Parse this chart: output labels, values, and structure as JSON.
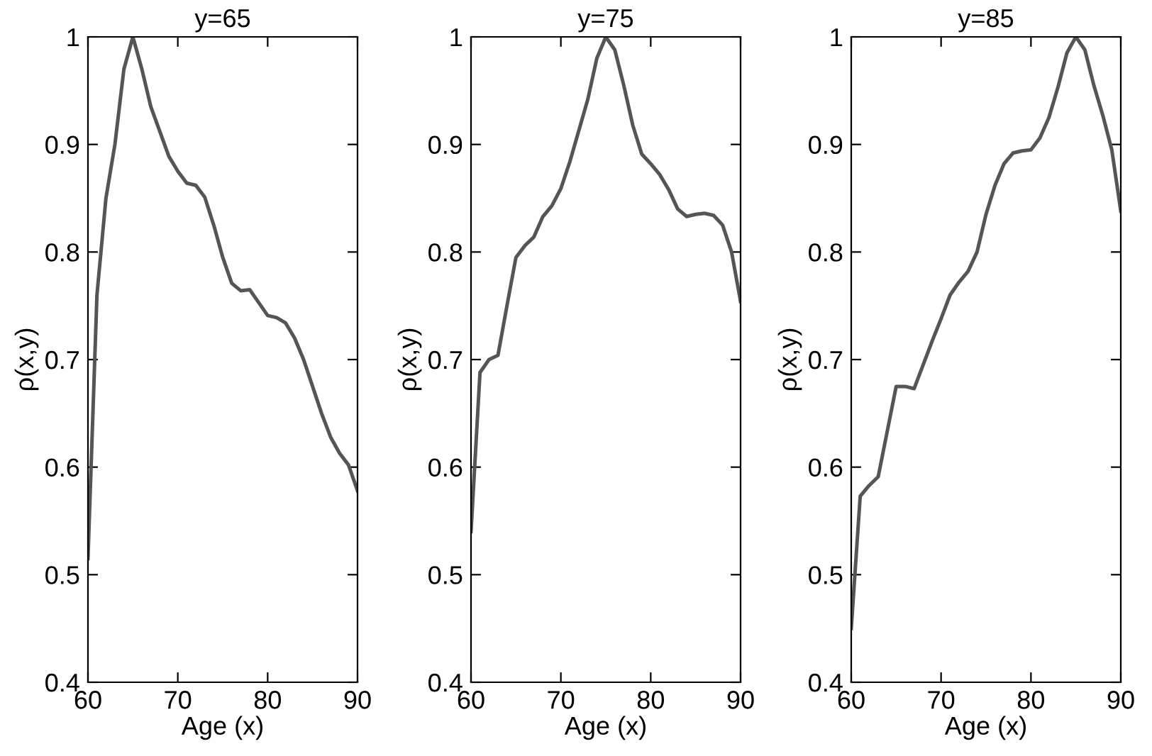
{
  "chart_data": [
    {
      "type": "line",
      "title": "y=65",
      "xlabel": "Age (x)",
      "ylabel": "ρ(x,y)",
      "x": [
        60,
        61,
        62,
        63,
        64,
        65,
        66,
        67,
        68,
        69,
        70,
        71,
        72,
        73,
        74,
        75,
        76,
        77,
        78,
        79,
        80,
        81,
        82,
        83,
        84,
        85,
        86,
        87,
        88,
        89,
        90
      ],
      "series": [
        {
          "color": "#555555",
          "values": [
            0.515,
            0.76,
            0.85,
            0.9,
            0.97,
            1.0,
            0.97,
            0.935,
            0.912,
            0.889,
            0.875,
            0.864,
            0.862,
            0.851,
            0.825,
            0.795,
            0.771,
            0.764,
            0.765,
            0.753,
            0.741,
            0.739,
            0.734,
            0.72,
            0.7,
            0.675,
            0.65,
            0.628,
            0.613,
            0.602,
            0.578
          ]
        }
      ],
      "xlim": [
        60,
        90
      ],
      "xticks": [
        60,
        70,
        80,
        90
      ],
      "ylim": [
        0.4,
        1
      ],
      "yticks": [
        0.4,
        0.5,
        0.6,
        0.7,
        0.8,
        0.9,
        1
      ],
      "grid": false,
      "marker": "none",
      "line_style": "solid"
    },
    {
      "type": "line",
      "title": "y=75",
      "xlabel": "Age (x)",
      "ylabel": "ρ(x,y)",
      "x": [
        60,
        61,
        62,
        63,
        64,
        65,
        66,
        67,
        68,
        69,
        70,
        71,
        72,
        73,
        74,
        75,
        76,
        77,
        78,
        79,
        80,
        81,
        82,
        83,
        84,
        85,
        86,
        87,
        88,
        89,
        90
      ],
      "series": [
        {
          "color": "#555555",
          "values": [
            0.54,
            0.688,
            0.7,
            0.704,
            0.75,
            0.795,
            0.806,
            0.814,
            0.833,
            0.843,
            0.859,
            0.884,
            0.913,
            0.942,
            0.98,
            1.0,
            0.988,
            0.955,
            0.918,
            0.891,
            0.882,
            0.872,
            0.858,
            0.84,
            0.833,
            0.835,
            0.836,
            0.834,
            0.825,
            0.8,
            0.754
          ]
        }
      ],
      "xlim": [
        60,
        90
      ],
      "xticks": [
        60,
        70,
        80,
        90
      ],
      "ylim": [
        0.4,
        1
      ],
      "yticks": [
        0.4,
        0.5,
        0.6,
        0.7,
        0.8,
        0.9,
        1
      ],
      "grid": false,
      "marker": "none",
      "line_style": "solid"
    },
    {
      "type": "line",
      "title": "y=85",
      "xlabel": "Age (x)",
      "ylabel": "ρ(x,y)",
      "x": [
        60,
        61,
        62,
        63,
        64,
        65,
        66,
        67,
        68,
        69,
        70,
        71,
        72,
        73,
        74,
        75,
        76,
        77,
        78,
        79,
        80,
        81,
        82,
        83,
        84,
        85,
        86,
        87,
        88,
        89,
        90
      ],
      "series": [
        {
          "color": "#555555",
          "values": [
            0.45,
            0.573,
            0.583,
            0.591,
            0.633,
            0.675,
            0.675,
            0.673,
            0.695,
            0.717,
            0.738,
            0.76,
            0.772,
            0.782,
            0.8,
            0.835,
            0.862,
            0.882,
            0.892,
            0.894,
            0.895,
            0.906,
            0.925,
            0.953,
            0.985,
            1.0,
            0.988,
            0.955,
            0.927,
            0.895,
            0.838
          ]
        }
      ],
      "xlim": [
        60,
        90
      ],
      "xticks": [
        60,
        70,
        80,
        90
      ],
      "ylim": [
        0.4,
        1
      ],
      "yticks": [
        0.4,
        0.5,
        0.6,
        0.7,
        0.8,
        0.9,
        1
      ],
      "grid": false,
      "marker": "none",
      "line_style": "solid"
    }
  ]
}
